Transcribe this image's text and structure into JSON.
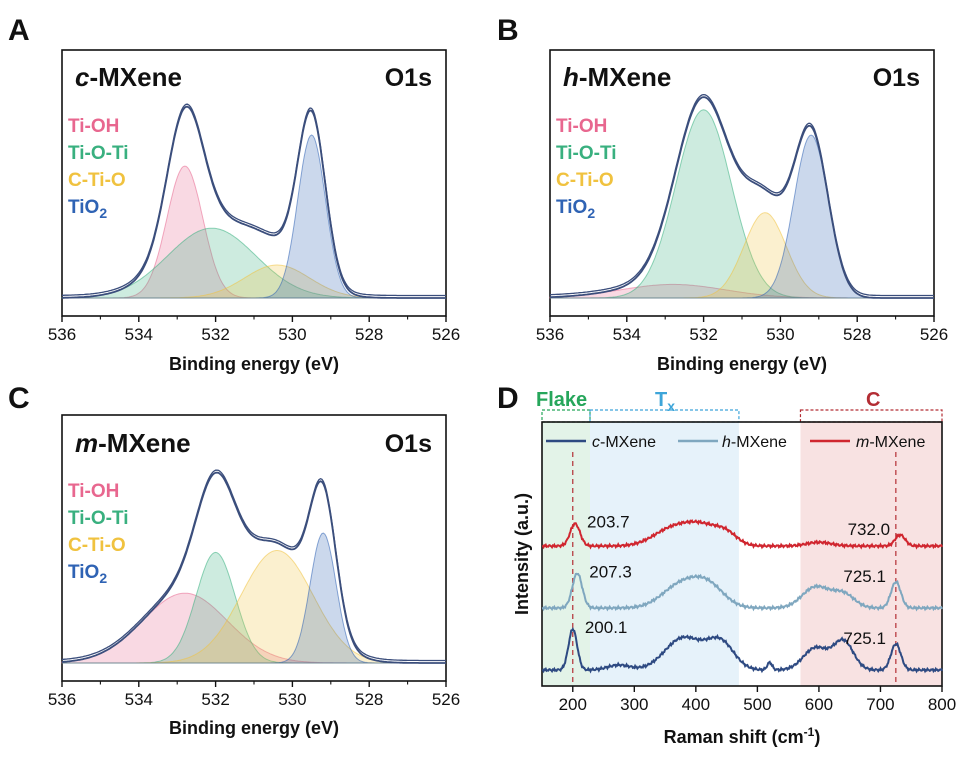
{
  "colors": {
    "Ti-OH": "#e8678f",
    "Ti-O-Ti": "#39b07f",
    "C-Ti-O": "#f0c23f",
    "TiO2": "#2f63b4",
    "envelope": "#3b4e7c",
    "c-MXene": "#2e4a82",
    "h-MXene": "#7fa7bf",
    "m-MXene": "#d0262f",
    "flake": "#26a65b",
    "Tx": "#3da5d9",
    "C": "#b32d34"
  },
  "xps_panels": [
    {
      "letter": "A",
      "sample_prefix": "c",
      "sample_suffix": "-MXene",
      "orbital": "O1s",
      "xlabel": "Binding energy (eV)"
    },
    {
      "letter": "B",
      "sample_prefix": "h",
      "sample_suffix": "-MXene",
      "orbital": "O1s",
      "xlabel": "Binding energy (eV)"
    },
    {
      "letter": "C",
      "sample_prefix": "m",
      "sample_suffix": "-MXene",
      "orbital": "O1s",
      "xlabel": "Binding energy (eV)"
    }
  ],
  "raman_panel": {
    "letter": "D",
    "ylabel": "Intensity (a.u.)",
    "regions": {
      "flake": "Flake",
      "tx_main": "T",
      "tx_sub": "x",
      "c": "C"
    },
    "legend": [
      {
        "prefix": "c",
        "suffix": "-MXene"
      },
      {
        "prefix": "h",
        "suffix": "-MXene"
      },
      {
        "prefix": "m",
        "suffix": "-MXene"
      }
    ]
  },
  "chart_data": [
    {
      "type": "area",
      "title": "c-MXene O1s",
      "xlabel": "Binding energy (eV)",
      "ylabel": "",
      "x_reversed": true,
      "xlim": [
        526,
        536
      ],
      "x_ticks": [
        536,
        534,
        532,
        530,
        528,
        526
      ],
      "legend": [
        {
          "label_main": "Ti-OH",
          "label_sub": ""
        },
        {
          "label_main": "Ti-O-Ti",
          "label_sub": ""
        },
        {
          "label_main": "C-Ti-O",
          "label_sub": ""
        },
        {
          "label_main": "TiO",
          "label_sub": "2"
        }
      ],
      "components": [
        {
          "name": "Ti-OH",
          "center": 532.8,
          "height": 0.68,
          "fwhm": 1.1
        },
        {
          "name": "Ti-O-Ti",
          "center": 532.1,
          "height": 0.36,
          "fwhm": 2.7
        },
        {
          "name": "C-Ti-O",
          "center": 530.4,
          "height": 0.17,
          "fwhm": 2.0
        },
        {
          "name": "TiO2",
          "center": 529.5,
          "height": 0.84,
          "fwhm": 0.85
        }
      ]
    },
    {
      "type": "area",
      "title": "h-MXene O1s",
      "xlabel": "Binding energy (eV)",
      "ylabel": "",
      "x_reversed": true,
      "xlim": [
        526,
        536
      ],
      "x_ticks": [
        536,
        534,
        532,
        530,
        528,
        526
      ],
      "legend": [
        {
          "label_main": "Ti-OH",
          "label_sub": ""
        },
        {
          "label_main": "Ti-O-Ti",
          "label_sub": ""
        },
        {
          "label_main": "C-Ti-O",
          "label_sub": ""
        },
        {
          "label_main": "TiO",
          "label_sub": "2"
        }
      ],
      "components": [
        {
          "name": "Ti-OH",
          "center": 532.8,
          "height": 0.07,
          "fwhm": 3.2
        },
        {
          "name": "Ti-O-Ti",
          "center": 532.0,
          "height": 0.97,
          "fwhm": 1.7
        },
        {
          "name": "C-Ti-O",
          "center": 530.4,
          "height": 0.44,
          "fwhm": 1.3
        },
        {
          "name": "TiO2",
          "center": 529.2,
          "height": 0.84,
          "fwhm": 1.05
        }
      ]
    },
    {
      "type": "area",
      "title": "m-MXene O1s",
      "xlabel": "Binding energy (eV)",
      "ylabel": "",
      "x_reversed": true,
      "xlim": [
        526,
        536
      ],
      "x_ticks": [
        536,
        534,
        532,
        530,
        528,
        526
      ],
      "legend": [
        {
          "label_main": "Ti-OH",
          "label_sub": ""
        },
        {
          "label_main": "Ti-O-Ti",
          "label_sub": ""
        },
        {
          "label_main": "C-Ti-O",
          "label_sub": ""
        },
        {
          "label_main": "TiO",
          "label_sub": "2"
        }
      ],
      "components": [
        {
          "name": "Ti-OH",
          "center": 532.8,
          "height": 0.36,
          "fwhm": 2.6
        },
        {
          "name": "Ti-O-Ti",
          "center": 532.0,
          "height": 0.57,
          "fwhm": 1.2
        },
        {
          "name": "C-Ti-O",
          "center": 530.4,
          "height": 0.58,
          "fwhm": 2.2
        },
        {
          "name": "TiO2",
          "center": 529.2,
          "height": 0.67,
          "fwhm": 0.8
        }
      ]
    },
    {
      "type": "line",
      "title": "",
      "xlabel_main": "Raman shift (cm",
      "xlabel_sup": "-1",
      "xlabel_tail": ")",
      "ylabel": "Intensity (a.u.)",
      "xlim": [
        150,
        800
      ],
      "x_ticks": [
        200,
        300,
        400,
        500,
        600,
        700,
        800
      ],
      "regions": [
        {
          "name": "Flake",
          "from": 150,
          "to": 228
        },
        {
          "name": "Tx",
          "from": 228,
          "to": 470
        },
        {
          "name": "C",
          "from": 570,
          "to": 800
        }
      ],
      "reference_lines": [
        200,
        725
      ],
      "series": [
        {
          "name": "m-MXene",
          "offset": 2.0,
          "peaks": [
            {
              "center": 203.7,
              "height": 0.36,
              "width": 8
            },
            {
              "center": 360,
              "height": 0.26,
              "width": 30
            },
            {
              "center": 410,
              "height": 0.3,
              "width": 28
            },
            {
              "center": 450,
              "height": 0.16,
              "width": 18
            },
            {
              "center": 600,
              "height": 0.06,
              "width": 20
            },
            {
              "center": 732.0,
              "height": 0.18,
              "width": 8
            }
          ],
          "labels": [
            {
              "x": 203.7,
              "text": "203.7"
            },
            {
              "x": 732.0,
              "text": "732.0"
            }
          ]
        },
        {
          "name": "h-MXene",
          "offset": 1.0,
          "peaks": [
            {
              "center": 207.3,
              "height": 0.56,
              "width": 8
            },
            {
              "center": 375,
              "height": 0.36,
              "width": 30
            },
            {
              "center": 420,
              "height": 0.34,
              "width": 26
            },
            {
              "center": 595,
              "height": 0.34,
              "width": 22
            },
            {
              "center": 640,
              "height": 0.22,
              "width": 18
            },
            {
              "center": 725.1,
              "height": 0.42,
              "width": 8
            }
          ],
          "labels": [
            {
              "x": 207.3,
              "text": "207.3"
            },
            {
              "x": 725.1,
              "text": "725.1"
            }
          ]
        },
        {
          "name": "c-MXene",
          "offset": 0.0,
          "peaks": [
            {
              "center": 200.1,
              "height": 0.66,
              "width": 7
            },
            {
              "center": 275,
              "height": 0.08,
              "width": 18
            },
            {
              "center": 380,
              "height": 0.52,
              "width": 30
            },
            {
              "center": 440,
              "height": 0.44,
              "width": 22
            },
            {
              "center": 520,
              "height": 0.12,
              "width": 4
            },
            {
              "center": 595,
              "height": 0.36,
              "width": 20
            },
            {
              "center": 640,
              "height": 0.46,
              "width": 16
            },
            {
              "center": 725.1,
              "height": 0.42,
              "width": 8
            }
          ],
          "labels": [
            {
              "x": 200.1,
              "text": "200.1"
            },
            {
              "x": 725.1,
              "text": "725.1"
            }
          ]
        }
      ]
    }
  ]
}
